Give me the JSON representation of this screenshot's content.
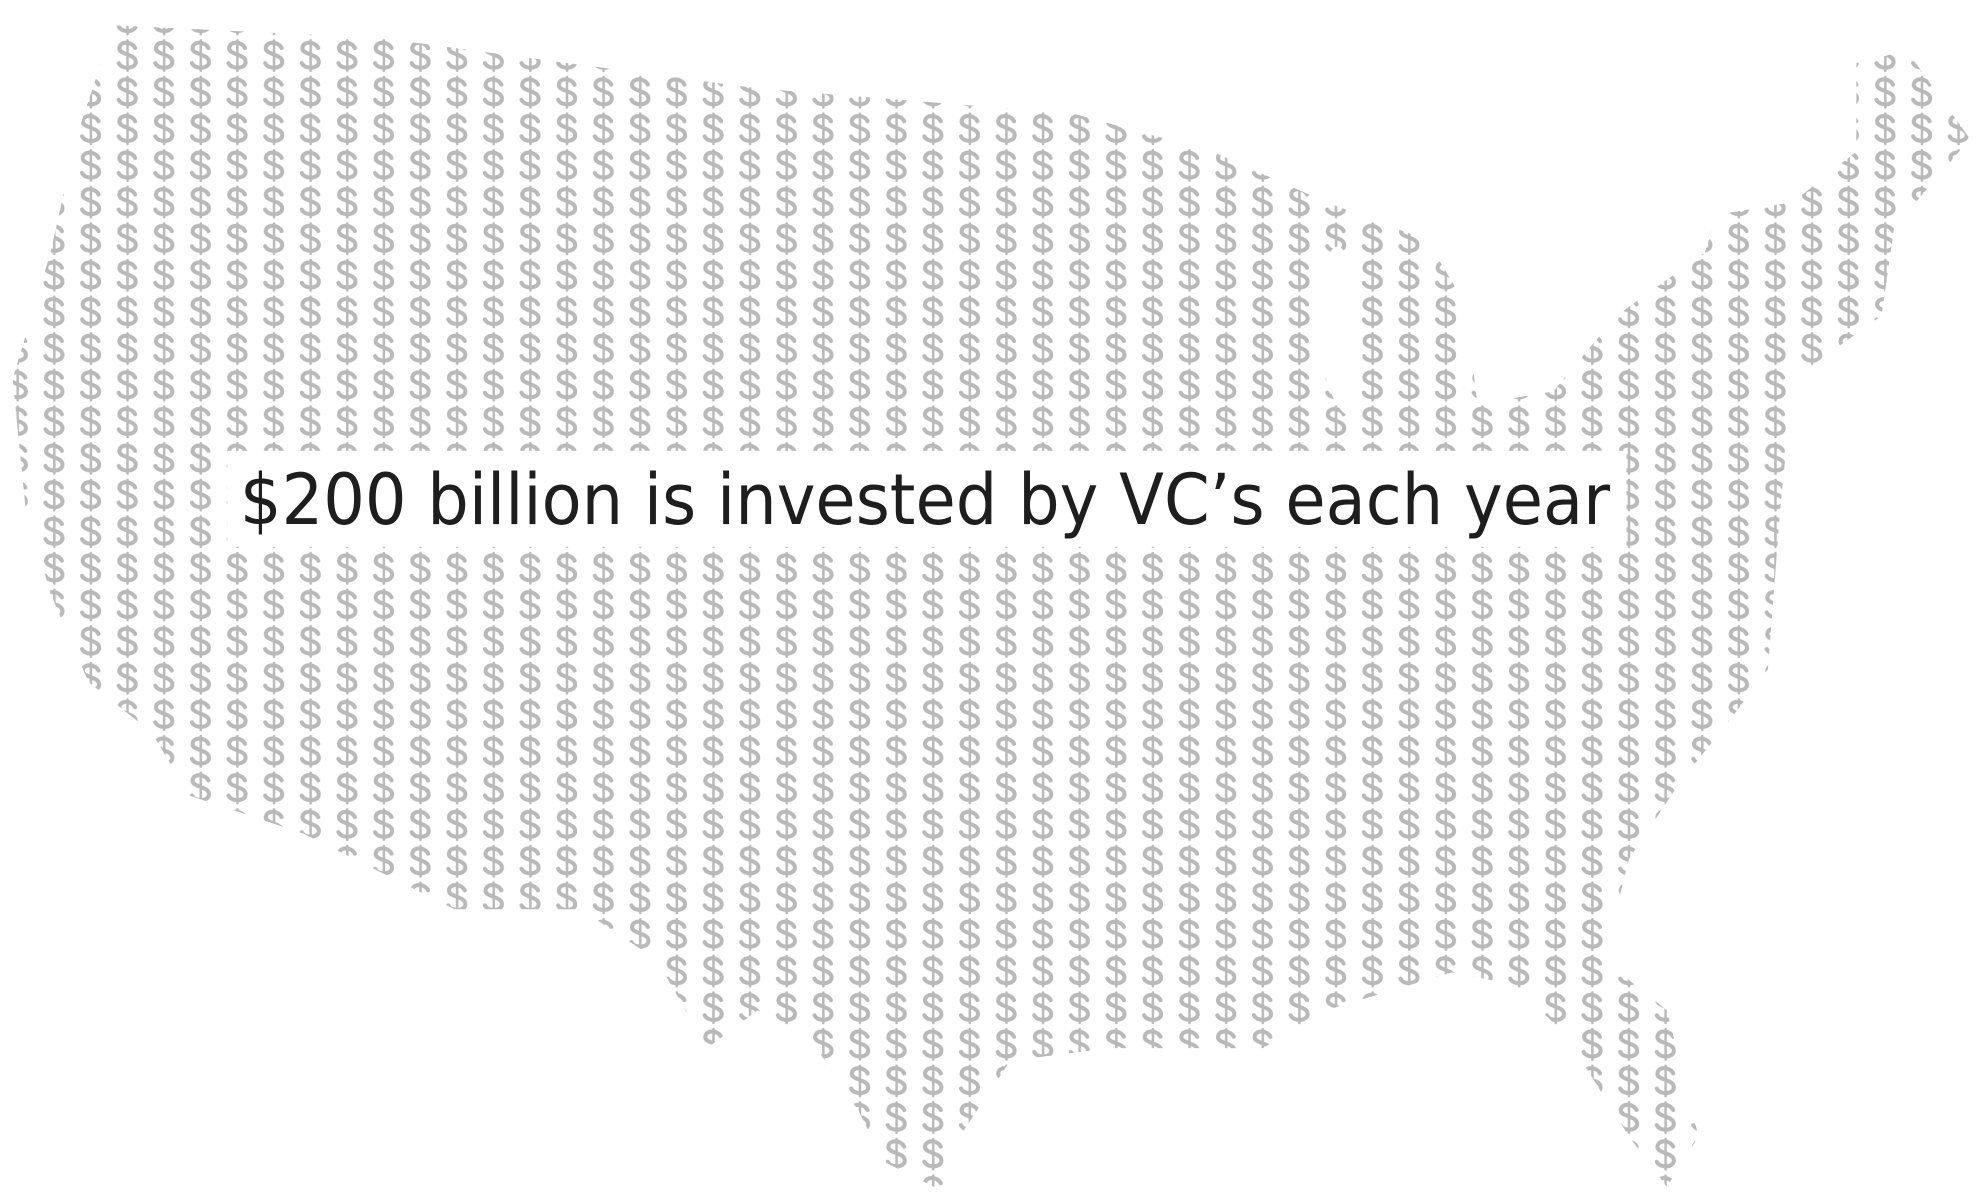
{
  "caption": "$200 billion is invested by VC’s each year"
}
